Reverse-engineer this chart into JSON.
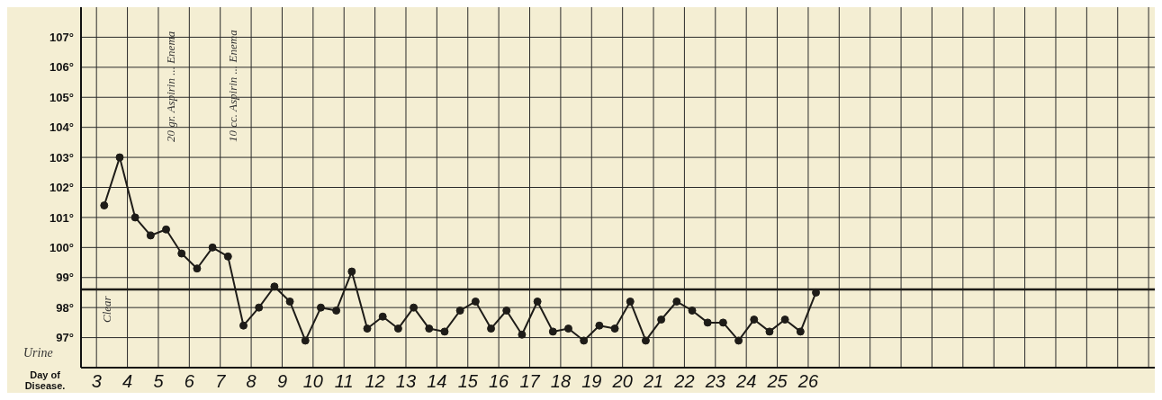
{
  "chart_data": {
    "type": "line",
    "xlabel": "Day of Disease.",
    "series": [
      {
        "color": "#1e1c18",
        "x": [
          3.25,
          3.75,
          4.25,
          4.75,
          5.25,
          5.75,
          6.25,
          6.75,
          7.25,
          7.75,
          8.25,
          8.75,
          9.25,
          9.75,
          10.25,
          10.75,
          11.25,
          11.75,
          12.25,
          12.75,
          13.25,
          13.75,
          14.25,
          14.75,
          15.25,
          15.75,
          16.25,
          16.75,
          17.25,
          17.75,
          18.25,
          18.75,
          19.25,
          19.75,
          20.25,
          20.75,
          21.25,
          21.75,
          22.25,
          22.75,
          23.25,
          23.75,
          24.25,
          24.75,
          25.25,
          25.75,
          26.25
        ],
        "values": [
          101.4,
          103.0,
          101.0,
          100.4,
          100.6,
          99.8,
          99.3,
          100.0,
          99.7,
          97.4,
          98.0,
          98.7,
          98.2,
          96.9,
          98.0,
          97.9,
          99.2,
          97.3,
          97.7,
          97.3,
          98.0,
          97.3,
          97.2,
          97.9,
          98.2,
          97.3,
          97.9,
          97.1,
          98.2,
          97.2,
          97.3,
          96.9,
          97.4,
          97.3,
          98.2,
          96.9,
          97.6,
          98.2,
          97.9,
          97.5,
          97.5,
          96.9,
          97.6,
          97.2,
          97.6,
          97.2,
          98.5
        ]
      }
    ],
    "xlim": [
      2.5,
      37.2
    ],
    "xticks": [
      3,
      4,
      5,
      6,
      7,
      8,
      9,
      10,
      11,
      12,
      13,
      14,
      15,
      16,
      17,
      18,
      19,
      20,
      21,
      22,
      23,
      24,
      25,
      26,
      {
        "value": 27,
        "label": null
      },
      {
        "value": 28,
        "label": null
      },
      {
        "value": 29,
        "label": null
      },
      {
        "value": 30,
        "label": null
      },
      {
        "value": 31,
        "label": null
      },
      {
        "value": 32,
        "label": null
      },
      {
        "value": 33,
        "label": null
      },
      {
        "value": 34,
        "label": null
      },
      {
        "value": 35,
        "label": null
      },
      {
        "value": 36,
        "label": null
      },
      {
        "value": 37,
        "label": null
      }
    ],
    "ylim": [
      96,
      108
    ],
    "yticks": [
      {
        "value": 97,
        "label": "97°"
      },
      {
        "value": 98,
        "label": "98°"
      },
      {
        "value": 99,
        "label": "99°"
      },
      {
        "value": 100,
        "label": "100°"
      },
      {
        "value": 101,
        "label": "101°"
      },
      {
        "value": 102,
        "label": "102°"
      },
      {
        "value": 103,
        "label": "103°"
      },
      {
        "value": 104,
        "label": "104°"
      },
      {
        "value": 105,
        "label": "105°"
      },
      {
        "value": 106,
        "label": "106°"
      },
      {
        "value": 107,
        "label": "107°"
      }
    ],
    "ref_lines": [
      {
        "axis": "y",
        "value": 98.6,
        "color": "#1e1c18"
      }
    ],
    "annotations": [
      "Urine",
      "Clear",
      "20 gr. Aspirin ... Enema",
      "10 cc. Aspirin ... Enema"
    ],
    "grid": true,
    "marker": "circle",
    "line_style": "solid"
  }
}
